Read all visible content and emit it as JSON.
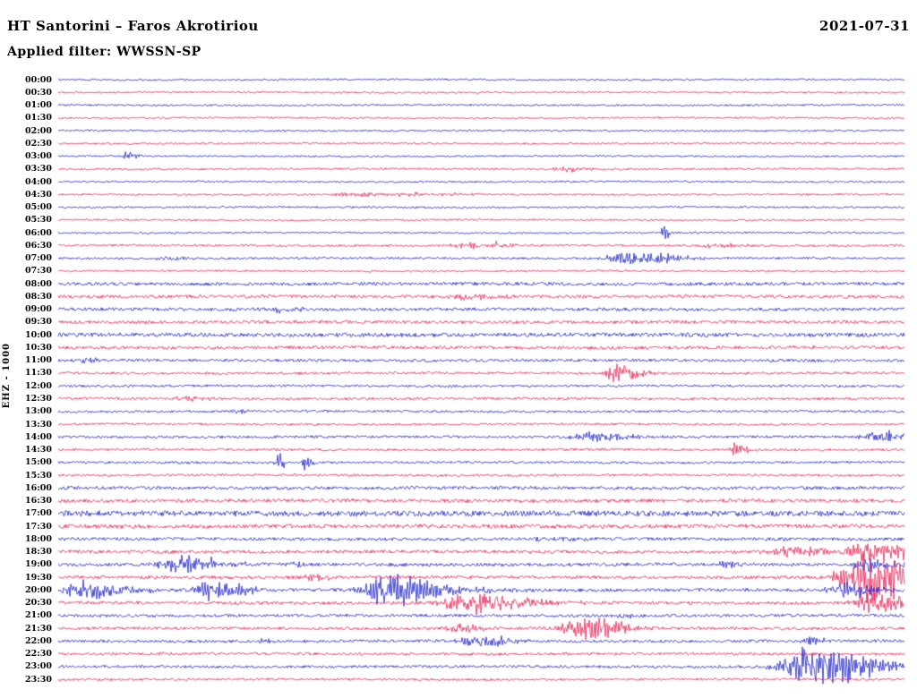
{
  "header": {
    "title": "HT Santorini – Faros Akrotiriou",
    "date": "2021-07-31",
    "filter_label": "Applied filter: WWSSN-SP"
  },
  "axis": {
    "left_label": "EHZ - 1000"
  },
  "chart_data": {
    "type": "helicorder",
    "station": "HT Santorini – Faros Akrotiriou",
    "channel": "EHZ",
    "scale": 1000,
    "date": "2021-07-31",
    "filter": "WWSSN-SP",
    "minutes_per_row": 30,
    "legend_position": "none",
    "grid": false,
    "row_colors": {
      "blue": "#1318c8",
      "red": "#e8174b"
    },
    "rows": [
      {
        "t": "00:00",
        "c": "blue",
        "n": 1.0,
        "e": []
      },
      {
        "t": "00:30",
        "c": "red",
        "n": 1.0,
        "e": []
      },
      {
        "t": "01:00",
        "c": "blue",
        "n": 1.0,
        "e": []
      },
      {
        "t": "01:30",
        "c": "red",
        "n": 1.0,
        "e": []
      },
      {
        "t": "02:00",
        "c": "blue",
        "n": 1.0,
        "e": []
      },
      {
        "t": "02:30",
        "c": "red",
        "n": 1.0,
        "e": []
      },
      {
        "t": "03:00",
        "c": "blue",
        "n": 1.0,
        "e": [
          {
            "x": 0.082,
            "a": 5,
            "w": 1.5
          }
        ]
      },
      {
        "t": "03:30",
        "c": "red",
        "n": 1.1,
        "e": [
          {
            "x": 0.6,
            "a": 2.5,
            "w": 4
          }
        ]
      },
      {
        "t": "04:00",
        "c": "blue",
        "n": 1.0,
        "e": []
      },
      {
        "t": "04:30",
        "c": "red",
        "n": 1.1,
        "e": [
          {
            "x": 0.37,
            "a": 2,
            "w": 15
          }
        ]
      },
      {
        "t": "05:00",
        "c": "blue",
        "n": 1.0,
        "e": []
      },
      {
        "t": "05:30",
        "c": "red",
        "n": 1.0,
        "e": []
      },
      {
        "t": "06:00",
        "c": "blue",
        "n": 1.0,
        "e": [
          {
            "x": 0.716,
            "a": 7,
            "w": 1.2
          }
        ]
      },
      {
        "t": "06:30",
        "c": "red",
        "n": 1.2,
        "e": [
          {
            "x": 0.481,
            "a": 4,
            "w": 5
          },
          {
            "x": 0.508,
            "a": 3,
            "w": 4
          },
          {
            "x": 0.778,
            "a": 3,
            "w": 4
          }
        ]
      },
      {
        "t": "07:00",
        "c": "blue",
        "n": 1.2,
        "e": [
          {
            "x": 0.672,
            "a": 7,
            "w": 8
          },
          {
            "x": 0.125,
            "a": 2.5,
            "w": 3
          }
        ]
      },
      {
        "t": "07:30",
        "c": "red",
        "n": 1.1,
        "e": []
      },
      {
        "t": "08:00",
        "c": "blue",
        "n": 1.8,
        "e": []
      },
      {
        "t": "08:30",
        "c": "red",
        "n": 1.8,
        "e": [
          {
            "x": 0.48,
            "a": 2.5,
            "w": 6
          }
        ]
      },
      {
        "t": "09:00",
        "c": "blue",
        "n": 1.8,
        "e": [
          {
            "x": 0.25,
            "a": 2.5,
            "w": 5
          }
        ]
      },
      {
        "t": "09:30",
        "c": "red",
        "n": 1.8,
        "e": []
      },
      {
        "t": "10:00",
        "c": "blue",
        "n": 2.2,
        "e": []
      },
      {
        "t": "10:30",
        "c": "red",
        "n": 1.8,
        "e": []
      },
      {
        "t": "11:00",
        "c": "blue",
        "n": 1.6,
        "e": [
          {
            "x": 0.03,
            "a": 3,
            "w": 2
          }
        ]
      },
      {
        "t": "11:30",
        "c": "red",
        "n": 1.4,
        "e": [
          {
            "x": 0.661,
            "a": 10,
            "w": 4
          }
        ]
      },
      {
        "t": "12:00",
        "c": "blue",
        "n": 1.3,
        "e": []
      },
      {
        "t": "12:30",
        "c": "red",
        "n": 1.4,
        "e": [
          {
            "x": 0.145,
            "a": 2.5,
            "w": 4
          }
        ]
      },
      {
        "t": "13:00",
        "c": "blue",
        "n": 1.3,
        "e": [
          {
            "x": 0.208,
            "a": 5,
            "w": 1.5
          }
        ]
      },
      {
        "t": "13:30",
        "c": "red",
        "n": 1.2,
        "e": []
      },
      {
        "t": "14:00",
        "c": "blue",
        "n": 1.4,
        "e": [
          {
            "x": 0.63,
            "a": 5,
            "w": 7
          },
          {
            "x": 0.973,
            "a": 6,
            "w": 6
          }
        ]
      },
      {
        "t": "14:30",
        "c": "red",
        "n": 1.4,
        "e": [
          {
            "x": 0.799,
            "a": 7,
            "w": 2
          }
        ]
      },
      {
        "t": "15:00",
        "c": "blue",
        "n": 1.3,
        "e": [
          {
            "x": 0.259,
            "a": 10,
            "w": 1
          },
          {
            "x": 0.291,
            "a": 10,
            "w": 1
          }
        ]
      },
      {
        "t": "15:30",
        "c": "red",
        "n": 1.3,
        "e": []
      },
      {
        "t": "16:00",
        "c": "blue",
        "n": 1.8,
        "e": []
      },
      {
        "t": "16:30",
        "c": "red",
        "n": 2.0,
        "e": []
      },
      {
        "t": "17:00",
        "c": "blue",
        "n": 3.0,
        "e": []
      },
      {
        "t": "17:30",
        "c": "red",
        "n": 2.2,
        "e": []
      },
      {
        "t": "18:00",
        "c": "blue",
        "n": 1.8,
        "e": [
          {
            "x": 0.577,
            "a": 3,
            "w": 5
          }
        ]
      },
      {
        "t": "18:30",
        "c": "red",
        "n": 1.8,
        "e": [
          {
            "x": 0.862,
            "a": 5,
            "w": 8
          },
          {
            "x": 0.957,
            "a": 12,
            "w": 7
          }
        ]
      },
      {
        "t": "19:00",
        "c": "blue",
        "n": 1.8,
        "e": [
          {
            "x": 0.143,
            "a": 9,
            "w": 7
          },
          {
            "x": 0.28,
            "a": 4,
            "w": 1.5
          },
          {
            "x": 0.786,
            "a": 5,
            "w": 3
          },
          {
            "x": 0.96,
            "a": 6,
            "w": 6
          }
        ]
      },
      {
        "t": "19:30",
        "c": "red",
        "n": 1.8,
        "e": [
          {
            "x": 0.3,
            "a": 3,
            "w": 3
          },
          {
            "x": 0.956,
            "a": 26,
            "w": 9
          },
          {
            "x": 0.99,
            "a": 14,
            "w": 6
          }
        ]
      },
      {
        "t": "20:00",
        "c": "blue",
        "n": 1.8,
        "e": [
          {
            "x": 0.032,
            "a": 9,
            "w": 7
          },
          {
            "x": 0.18,
            "a": 9,
            "w": 6
          },
          {
            "x": 0.386,
            "a": 15,
            "w": 7
          },
          {
            "x": 0.44,
            "a": 5,
            "w": 10
          },
          {
            "x": 0.926,
            "a": 8,
            "w": 5
          }
        ]
      },
      {
        "t": "20:30",
        "c": "red",
        "n": 1.8,
        "e": [
          {
            "x": 0.481,
            "a": 13,
            "w": 7
          },
          {
            "x": 0.52,
            "a": 6,
            "w": 9
          },
          {
            "x": 0.963,
            "a": 11,
            "w": 6
          }
        ]
      },
      {
        "t": "21:00",
        "c": "blue",
        "n": 1.6,
        "e": [
          {
            "x": 0.665,
            "a": 3,
            "w": 2
          }
        ]
      },
      {
        "t": "21:30",
        "c": "red",
        "n": 1.6,
        "e": [
          {
            "x": 0.471,
            "a": 5,
            "w": 4
          },
          {
            "x": 0.619,
            "a": 11,
            "w": 7
          }
        ]
      },
      {
        "t": "22:00",
        "c": "blue",
        "n": 1.6,
        "e": [
          {
            "x": 0.243,
            "a": 4,
            "w": 1.5
          },
          {
            "x": 0.492,
            "a": 8,
            "w": 5
          },
          {
            "x": 0.887,
            "a": 4,
            "w": 3
          }
        ]
      },
      {
        "t": "22:30",
        "c": "red",
        "n": 1.5,
        "e": [
          {
            "x": 0.12,
            "a": 2.5,
            "w": 3
          }
        ]
      },
      {
        "t": "23:00",
        "c": "blue",
        "n": 1.5,
        "e": [
          {
            "x": 0.885,
            "a": 20,
            "w": 9
          },
          {
            "x": 0.935,
            "a": 10,
            "w": 6
          }
        ]
      },
      {
        "t": "23:30",
        "c": "red",
        "n": 1.3,
        "e": []
      }
    ]
  }
}
